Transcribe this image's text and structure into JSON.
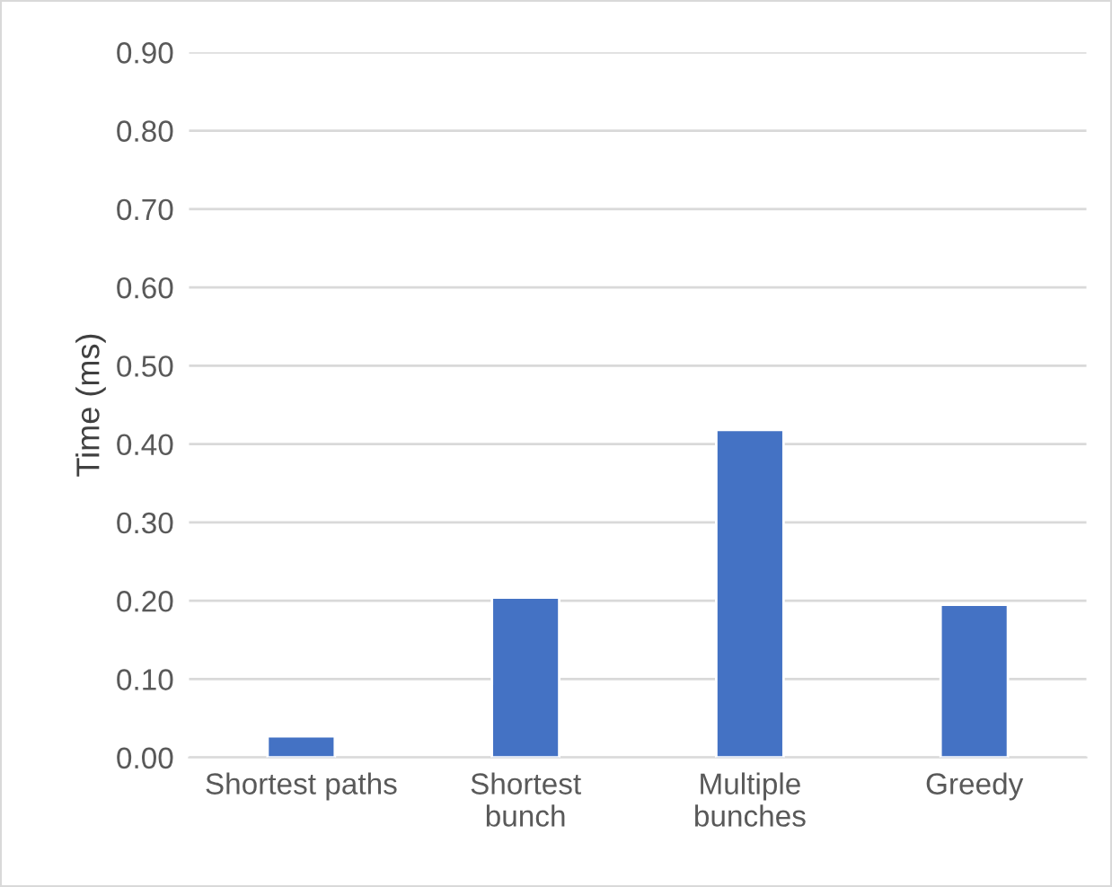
{
  "chart_data": {
    "type": "bar",
    "ylabel": "Time (ms)",
    "categories": [
      "Shortest paths",
      "Shortest\nbunch",
      "Multiple\nbunches",
      "Greedy"
    ],
    "values": [
      0.027,
      0.204,
      0.418,
      0.195
    ],
    "color": "#4472c4",
    "ylim": [
      0,
      0.9
    ],
    "yticks": [
      {
        "value": 0,
        "label": "0.00"
      },
      {
        "value": 0.1,
        "label": "0.10"
      },
      {
        "value": 0.2,
        "label": "0.20"
      },
      {
        "value": 0.3,
        "label": "0.30"
      },
      {
        "value": 0.4,
        "label": "0.40"
      },
      {
        "value": 0.5,
        "label": "0.50"
      },
      {
        "value": 0.6,
        "label": "0.60"
      },
      {
        "value": 0.7,
        "label": "0.70"
      },
      {
        "value": 0.8,
        "label": "0.80"
      },
      {
        "value": 0.9,
        "label": "0.90"
      }
    ],
    "grid": "y"
  }
}
